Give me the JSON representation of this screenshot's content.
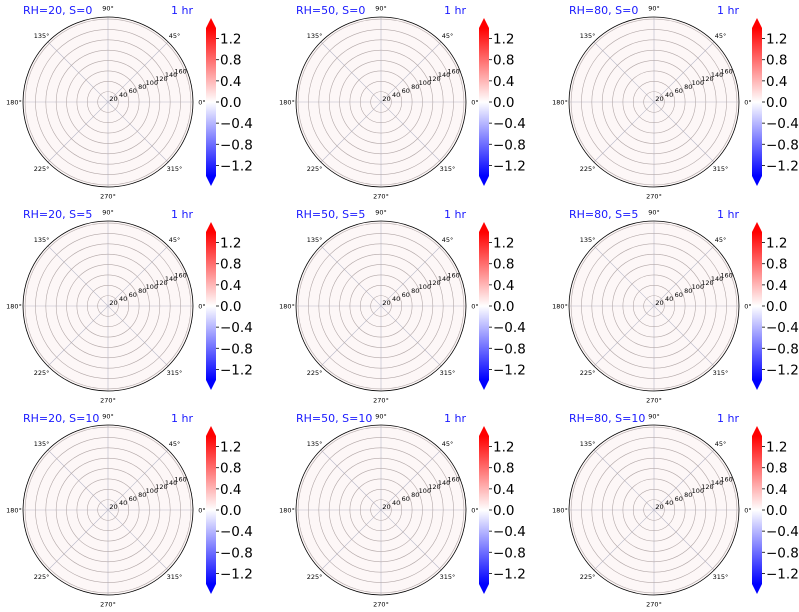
{
  "colors": {
    "title": "#1a1aff",
    "ring": "#b3a8a8",
    "spoke": "#b8b8c8",
    "outline": "#000000",
    "fill": "#fdf7f7",
    "cmap_low": "#0000ff",
    "cmap_mid": "#ffffff",
    "cmap_high": "#ff0000"
  },
  "chart_data": [
    {
      "type": "polar-contour",
      "title_left": "RH=20, S=0",
      "title_right": "1 hr",
      "theta_ticks": [
        "0°",
        "45°",
        "90°",
        "135°",
        "180°",
        "225°",
        "270°",
        "315°"
      ],
      "r_ticks": [
        "20",
        "40",
        "60",
        "80",
        "100",
        "120",
        "140",
        "160"
      ],
      "colorbar": {
        "ticks": [
          "1.2",
          "0.8",
          "0.4",
          "0.0",
          "−0.4",
          "−0.8",
          "−1.2"
        ],
        "range": [
          -1.4,
          1.4
        ],
        "cmap": "bwr"
      }
    },
    {
      "type": "polar-contour",
      "title_left": "RH=50, S=0",
      "title_right": "1 hr",
      "theta_ticks": [
        "0°",
        "45°",
        "90°",
        "135°",
        "180°",
        "225°",
        "270°",
        "315°"
      ],
      "r_ticks": [
        "20",
        "40",
        "60",
        "80",
        "100",
        "120",
        "140",
        "160"
      ],
      "colorbar": {
        "ticks": [
          "1.2",
          "0.8",
          "0.4",
          "0.0",
          "−0.4",
          "−0.8",
          "−1.2"
        ],
        "range": [
          -1.4,
          1.4
        ],
        "cmap": "bwr"
      }
    },
    {
      "type": "polar-contour",
      "title_left": "RH=80, S=0",
      "title_right": "1 hr",
      "theta_ticks": [
        "0°",
        "45°",
        "90°",
        "135°",
        "180°",
        "225°",
        "270°",
        "315°"
      ],
      "r_ticks": [
        "20",
        "40",
        "60",
        "80",
        "100",
        "120",
        "140",
        "160"
      ],
      "colorbar": {
        "ticks": [
          "1.2",
          "0.8",
          "0.4",
          "0.0",
          "−0.4",
          "−0.8",
          "−1.2"
        ],
        "range": [
          -1.4,
          1.4
        ],
        "cmap": "bwr"
      }
    },
    {
      "type": "polar-contour",
      "title_left": "RH=20, S=5",
      "title_right": "1 hr",
      "theta_ticks": [
        "0°",
        "45°",
        "90°",
        "135°",
        "180°",
        "225°",
        "270°",
        "315°"
      ],
      "r_ticks": [
        "20",
        "40",
        "60",
        "80",
        "100",
        "120",
        "140",
        "160"
      ],
      "colorbar": {
        "ticks": [
          "1.2",
          "0.8",
          "0.4",
          "0.0",
          "−0.4",
          "−0.8",
          "−1.2"
        ],
        "range": [
          -1.4,
          1.4
        ],
        "cmap": "bwr"
      }
    },
    {
      "type": "polar-contour",
      "title_left": "RH=50, S=5",
      "title_right": "1 hr",
      "theta_ticks": [
        "0°",
        "45°",
        "90°",
        "135°",
        "180°",
        "225°",
        "270°",
        "315°"
      ],
      "r_ticks": [
        "20",
        "40",
        "60",
        "80",
        "100",
        "120",
        "140",
        "160"
      ],
      "colorbar": {
        "ticks": [
          "1.2",
          "0.8",
          "0.4",
          "0.0",
          "−0.4",
          "−0.8",
          "−1.2"
        ],
        "range": [
          -1.4,
          1.4
        ],
        "cmap": "bwr"
      }
    },
    {
      "type": "polar-contour",
      "title_left": "RH=80, S=5",
      "title_right": "1 hr",
      "theta_ticks": [
        "0°",
        "45°",
        "90°",
        "135°",
        "180°",
        "225°",
        "270°",
        "315°"
      ],
      "r_ticks": [
        "20",
        "40",
        "60",
        "80",
        "100",
        "120",
        "140",
        "160"
      ],
      "colorbar": {
        "ticks": [
          "1.2",
          "0.8",
          "0.4",
          "0.0",
          "−0.4",
          "−0.8",
          "−1.2"
        ],
        "range": [
          -1.4,
          1.4
        ],
        "cmap": "bwr"
      }
    },
    {
      "type": "polar-contour",
      "title_left": "RH=20, S=10",
      "title_right": "1 hr",
      "theta_ticks": [
        "0°",
        "45°",
        "90°",
        "135°",
        "180°",
        "225°",
        "270°",
        "315°"
      ],
      "r_ticks": [
        "20",
        "40",
        "60",
        "80",
        "100",
        "120",
        "140",
        "160"
      ],
      "colorbar": {
        "ticks": [
          "1.2",
          "0.8",
          "0.4",
          "0.0",
          "−0.4",
          "−0.8",
          "−1.2"
        ],
        "range": [
          -1.4,
          1.4
        ],
        "cmap": "bwr"
      }
    },
    {
      "type": "polar-contour",
      "title_left": "RH=50, S=10",
      "title_right": "1 hr",
      "theta_ticks": [
        "0°",
        "45°",
        "90°",
        "135°",
        "180°",
        "225°",
        "270°",
        "315°"
      ],
      "r_ticks": [
        "20",
        "40",
        "60",
        "80",
        "100",
        "120",
        "140",
        "160"
      ],
      "colorbar": {
        "ticks": [
          "1.2",
          "0.8",
          "0.4",
          "0.0",
          "−0.4",
          "−0.8",
          "−1.2"
        ],
        "range": [
          -1.4,
          1.4
        ],
        "cmap": "bwr"
      }
    },
    {
      "type": "polar-contour",
      "title_left": "RH=80, S=10",
      "title_right": "1 hr",
      "theta_ticks": [
        "0°",
        "45°",
        "90°",
        "135°",
        "180°",
        "225°",
        "270°",
        "315°"
      ],
      "r_ticks": [
        "20",
        "40",
        "60",
        "80",
        "100",
        "120",
        "140",
        "160"
      ],
      "colorbar": {
        "ticks": [
          "1.2",
          "0.8",
          "0.4",
          "0.0",
          "−0.4",
          "−0.8",
          "−1.2"
        ],
        "range": [
          -1.4,
          1.4
        ],
        "cmap": "bwr"
      }
    }
  ]
}
